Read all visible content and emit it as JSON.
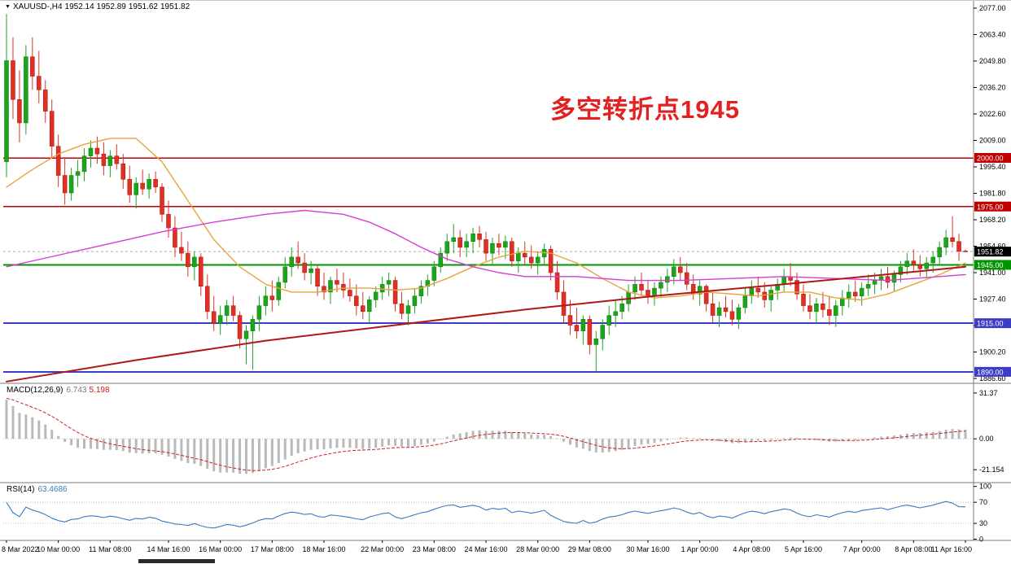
{
  "header": {
    "dropdown_icon": "▼",
    "symbol": "XAUUSD-,H4",
    "open": "1952.14",
    "high": "1952.89",
    "low": "1951.62",
    "close": "1951.82"
  },
  "annotation": {
    "text": "多空转折点1945",
    "color": "#e32020"
  },
  "indicators": {
    "macd": {
      "title": "MACD(12,26,9)",
      "value_main": "6.743",
      "value_signal": "5.198"
    },
    "rsi": {
      "title": "RSI(14)",
      "value": "63.4686"
    }
  },
  "chart_data": {
    "type": "candlestick",
    "symbol": "XAUUSD",
    "timeframe": "H4",
    "title": "XAUUSD-,H4",
    "y_axis": {
      "top": 2077.0,
      "bottom": 1886.6,
      "ticks": [
        "2077.00",
        "2063.40",
        "2049.80",
        "2036.20",
        "2022.60",
        "2009.00",
        "1995.40",
        "1981.80",
        "1968.20",
        "1954.60",
        "1941.00",
        "1927.40",
        "1913.80",
        "1900.20",
        "1886.60"
      ]
    },
    "x_labels": [
      "8 Mar 2022",
      "10 Mar 00:00",
      "11 Mar 08:00",
      "14 Mar 16:00",
      "16 Mar 00:00",
      "17 Mar 08:00",
      "18 Mar 16:00",
      "22 Mar 00:00",
      "23 Mar 08:00",
      "24 Mar 16:00",
      "28 Mar 00:00",
      "29 Mar 08:00",
      "30 Mar 16:00",
      "1 Apr 00:00",
      "4 Apr 08:00",
      "5 Apr 16:00",
      "7 Apr 00:00",
      "8 Apr 08:00",
      "11 Apr 16:00"
    ],
    "hlines": [
      {
        "price": 2000.0,
        "label": "2000.00",
        "color": "#c00000",
        "width": 1.5
      },
      {
        "price": 1975.0,
        "label": "1975.00",
        "color": "#c00000",
        "width": 1.5
      },
      {
        "price": 1945.0,
        "label": "1945.00",
        "color": "#009500",
        "width": 2
      },
      {
        "price": 1915.0,
        "label": "1915.00",
        "color": "#3c3cc8",
        "width": 2
      },
      {
        "price": 1890.0,
        "label": "1890.00",
        "color": "#3c3cc8",
        "width": 2
      }
    ],
    "bid": {
      "price": 1951.82,
      "label": "1951.82",
      "box_color": "#000000"
    },
    "ma_lines": [
      {
        "name": "ma-fast-orange",
        "color": "#e8a33d",
        "width": 1.4,
        "points": [
          [
            0,
            1985
          ],
          [
            4,
            1994
          ],
          [
            8,
            2002
          ],
          [
            12,
            2007
          ],
          [
            16,
            2010
          ],
          [
            20,
            2010
          ],
          [
            24,
            1998
          ],
          [
            28,
            1978
          ],
          [
            32,
            1958
          ],
          [
            36,
            1944
          ],
          [
            40,
            1935
          ],
          [
            44,
            1931
          ],
          [
            48,
            1931
          ],
          [
            52,
            1933
          ],
          [
            56,
            1933
          ],
          [
            60,
            1932
          ],
          [
            64,
            1933
          ],
          [
            68,
            1938
          ],
          [
            72,
            1944
          ],
          [
            76,
            1949
          ],
          [
            80,
            1952
          ],
          [
            84,
            1951
          ],
          [
            88,
            1946
          ],
          [
            92,
            1938
          ],
          [
            96,
            1931
          ],
          [
            100,
            1928
          ],
          [
            104,
            1929
          ],
          [
            108,
            1931
          ],
          [
            112,
            1930
          ],
          [
            116,
            1929
          ],
          [
            120,
            1931
          ],
          [
            124,
            1931
          ],
          [
            128,
            1928
          ],
          [
            132,
            1927
          ],
          [
            136,
            1930
          ],
          [
            140,
            1935
          ],
          [
            144,
            1940
          ],
          [
            148,
            1946
          ]
        ]
      },
      {
        "name": "ma-slow-magenta",
        "color": "#d63cd6",
        "width": 1.4,
        "points": [
          [
            0,
            1944
          ],
          [
            8,
            1950
          ],
          [
            16,
            1956
          ],
          [
            24,
            1962
          ],
          [
            32,
            1967
          ],
          [
            40,
            1971
          ],
          [
            46,
            1973
          ],
          [
            52,
            1971
          ],
          [
            56,
            1967
          ],
          [
            60,
            1961
          ],
          [
            64,
            1954
          ],
          [
            68,
            1948
          ],
          [
            72,
            1944
          ],
          [
            76,
            1941
          ],
          [
            80,
            1939
          ],
          [
            88,
            1939
          ],
          [
            96,
            1937
          ],
          [
            104,
            1937
          ],
          [
            112,
            1938
          ],
          [
            120,
            1939
          ],
          [
            128,
            1938
          ],
          [
            136,
            1937
          ],
          [
            144,
            1939
          ],
          [
            148,
            1940
          ]
        ]
      },
      {
        "name": "trend-darkred",
        "color": "#b01818",
        "width": 2,
        "points": [
          [
            0,
            1885
          ],
          [
            20,
            1896
          ],
          [
            40,
            1906
          ],
          [
            60,
            1914
          ],
          [
            80,
            1922
          ],
          [
            100,
            1929
          ],
          [
            120,
            1935
          ],
          [
            148,
            1944
          ]
        ]
      }
    ],
    "macd_axis": {
      "domain": [
        38,
        -30
      ],
      "ticks": [
        {
          "v": 31.37,
          "label": "31.37"
        },
        {
          "v": 0,
          "label": "0.00"
        },
        {
          "v": -21.154,
          "label": "-21.154"
        }
      ]
    },
    "rsi_axis": {
      "levels": [
        70,
        30
      ],
      "ticks": [
        {
          "v": 100,
          "label": "100"
        },
        {
          "v": 70,
          "label": "70"
        },
        {
          "v": 30,
          "label": "30"
        },
        {
          "v": 0,
          "label": "0"
        }
      ]
    },
    "colors": {
      "up": "#1CA51C",
      "up_edge": "#0B7A0B",
      "down": "#E03024",
      "down_edge": "#A31510",
      "bid_line": "#aaaaaa",
      "separator": "#7a7a7a",
      "axis_text": "#000000",
      "macd_hist": "#b9b9b9",
      "macd_signal": "#cc2222",
      "rsi_line": "#3b7bbf",
      "level_dots": "#bbbbbb"
    },
    "candles": [
      [
        1998,
        2074,
        1990,
        2050
      ],
      [
        2050,
        2062,
        2020,
        2030
      ],
      [
        2030,
        2045,
        2008,
        2018
      ],
      [
        2018,
        2058,
        2012,
        2052
      ],
      [
        2052,
        2062,
        2035,
        2042
      ],
      [
        2042,
        2055,
        2028,
        2035
      ],
      [
        2035,
        2040,
        2018,
        2024
      ],
      [
        2024,
        2030,
        2000,
        2006
      ],
      [
        2006,
        2012,
        1985,
        1991
      ],
      [
        1991,
        2000,
        1976,
        1982
      ],
      [
        1982,
        1995,
        1978,
        1991
      ],
      [
        1991,
        1999,
        1985,
        1993
      ],
      [
        1993,
        2005,
        1988,
        2001
      ],
      [
        2001,
        2009,
        1995,
        2005
      ],
      [
        2005,
        2011,
        1997,
        2002
      ],
      [
        2002,
        2008,
        1991,
        1996
      ],
      [
        1996,
        2004,
        1990,
        2001
      ],
      [
        2001,
        2007,
        1994,
        1997
      ],
      [
        1997,
        2002,
        1984,
        1989
      ],
      [
        1989,
        1996,
        1977,
        1981
      ],
      [
        1981,
        1990,
        1974,
        1987
      ],
      [
        1987,
        1994,
        1981,
        1984
      ],
      [
        1984,
        1992,
        1979,
        1989
      ],
      [
        1989,
        1993,
        1982,
        1985
      ],
      [
        1985,
        1987,
        1967,
        1971
      ],
      [
        1971,
        1978,
        1959,
        1964
      ],
      [
        1964,
        1970,
        1949,
        1954
      ],
      [
        1954,
        1962,
        1947,
        1951
      ],
      [
        1951,
        1957,
        1939,
        1944
      ],
      [
        1944,
        1952,
        1937,
        1949
      ],
      [
        1949,
        1951,
        1929,
        1934
      ],
      [
        1934,
        1940,
        1917,
        1921
      ],
      [
        1921,
        1929,
        1911,
        1915
      ],
      [
        1915,
        1924,
        1909,
        1919
      ],
      [
        1919,
        1927,
        1914,
        1924
      ],
      [
        1924,
        1929,
        1916,
        1919
      ],
      [
        1919,
        1921,
        1902,
        1907
      ],
      [
        1907,
        1914,
        1894,
        1911
      ],
      [
        1911,
        1919,
        1891,
        1917
      ],
      [
        1917,
        1929,
        1911,
        1924
      ],
      [
        1924,
        1934,
        1919,
        1929
      ],
      [
        1929,
        1937,
        1921,
        1927
      ],
      [
        1927,
        1939,
        1924,
        1936
      ],
      [
        1936,
        1949,
        1933,
        1944
      ],
      [
        1944,
        1954,
        1939,
        1949
      ],
      [
        1949,
        1957,
        1943,
        1946
      ],
      [
        1946,
        1951,
        1937,
        1941
      ],
      [
        1941,
        1947,
        1935,
        1943
      ],
      [
        1943,
        1945,
        1929,
        1934
      ],
      [
        1934,
        1941,
        1927,
        1931
      ],
      [
        1931,
        1939,
        1925,
        1937
      ],
      [
        1937,
        1943,
        1931,
        1935
      ],
      [
        1935,
        1941,
        1928,
        1932
      ],
      [
        1932,
        1938,
        1926,
        1929
      ],
      [
        1929,
        1935,
        1919,
        1924
      ],
      [
        1924,
        1931,
        1917,
        1921
      ],
      [
        1921,
        1929,
        1915,
        1927
      ],
      [
        1927,
        1934,
        1923,
        1931
      ],
      [
        1931,
        1939,
        1927,
        1935
      ],
      [
        1935,
        1941,
        1929,
        1937
      ],
      [
        1937,
        1939,
        1921,
        1925
      ],
      [
        1925,
        1931,
        1917,
        1920
      ],
      [
        1920,
        1927,
        1914,
        1924
      ],
      [
        1924,
        1933,
        1920,
        1929
      ],
      [
        1929,
        1937,
        1925,
        1934
      ],
      [
        1934,
        1940,
        1929,
        1937
      ],
      [
        1937,
        1947,
        1934,
        1944
      ],
      [
        1944,
        1954,
        1941,
        1951
      ],
      [
        1951,
        1961,
        1947,
        1957
      ],
      [
        1957,
        1966,
        1951,
        1959
      ],
      [
        1959,
        1963,
        1949,
        1954
      ],
      [
        1954,
        1961,
        1949,
        1957
      ],
      [
        1957,
        1964,
        1951,
        1961
      ],
      [
        1961,
        1965,
        1954,
        1958
      ],
      [
        1958,
        1962,
        1947,
        1951
      ],
      [
        1951,
        1959,
        1945,
        1956
      ],
      [
        1956,
        1961,
        1950,
        1954
      ],
      [
        1954,
        1960,
        1948,
        1957
      ],
      [
        1957,
        1959,
        1944,
        1947
      ],
      [
        1947,
        1954,
        1941,
        1951
      ],
      [
        1951,
        1957,
        1945,
        1949
      ],
      [
        1949,
        1955,
        1943,
        1946
      ],
      [
        1946,
        1952,
        1940,
        1949
      ],
      [
        1949,
        1956,
        1945,
        1953
      ],
      [
        1953,
        1955,
        1937,
        1941
      ],
      [
        1941,
        1947,
        1927,
        1931
      ],
      [
        1931,
        1937,
        1915,
        1919
      ],
      [
        1919,
        1927,
        1909,
        1914
      ],
      [
        1914,
        1923,
        1907,
        1911
      ],
      [
        1911,
        1919,
        1904,
        1917
      ],
      [
        1917,
        1919,
        1899,
        1904
      ],
      [
        1904,
        1911,
        1890,
        1907
      ],
      [
        1907,
        1917,
        1901,
        1914
      ],
      [
        1914,
        1924,
        1909,
        1919
      ],
      [
        1919,
        1927,
        1913,
        1921
      ],
      [
        1921,
        1929,
        1917,
        1925
      ],
      [
        1925,
        1935,
        1921,
        1931
      ],
      [
        1931,
        1939,
        1927,
        1935
      ],
      [
        1935,
        1941,
        1929,
        1932
      ],
      [
        1932,
        1937,
        1925,
        1929
      ],
      [
        1929,
        1936,
        1924,
        1933
      ],
      [
        1933,
        1939,
        1928,
        1936
      ],
      [
        1936,
        1943,
        1931,
        1939
      ],
      [
        1939,
        1948,
        1935,
        1944
      ],
      [
        1944,
        1949,
        1937,
        1941
      ],
      [
        1941,
        1946,
        1932,
        1935
      ],
      [
        1935,
        1940,
        1927,
        1930
      ],
      [
        1930,
        1937,
        1924,
        1934
      ],
      [
        1934,
        1935,
        1921,
        1925
      ],
      [
        1925,
        1931,
        1915,
        1919
      ],
      [
        1919,
        1926,
        1913,
        1923
      ],
      [
        1923,
        1929,
        1918,
        1921
      ],
      [
        1921,
        1927,
        1914,
        1917
      ],
      [
        1917,
        1925,
        1912,
        1923
      ],
      [
        1923,
        1933,
        1920,
        1929
      ],
      [
        1929,
        1937,
        1925,
        1933
      ],
      [
        1933,
        1939,
        1928,
        1931
      ],
      [
        1931,
        1936,
        1923,
        1927
      ],
      [
        1927,
        1934,
        1921,
        1932
      ],
      [
        1932,
        1938,
        1927,
        1935
      ],
      [
        1935,
        1943,
        1931,
        1939
      ],
      [
        1939,
        1946,
        1934,
        1937
      ],
      [
        1937,
        1941,
        1927,
        1930
      ],
      [
        1930,
        1935,
        1921,
        1924
      ],
      [
        1924,
        1930,
        1917,
        1921
      ],
      [
        1921,
        1928,
        1915,
        1925
      ],
      [
        1925,
        1931,
        1918,
        1922
      ],
      [
        1922,
        1929,
        1914,
        1919
      ],
      [
        1919,
        1927,
        1913,
        1924
      ],
      [
        1924,
        1932,
        1919,
        1928
      ],
      [
        1928,
        1935,
        1923,
        1931
      ],
      [
        1931,
        1937,
        1926,
        1929
      ],
      [
        1929,
        1936,
        1924,
        1933
      ],
      [
        1933,
        1940,
        1929,
        1935
      ],
      [
        1935,
        1941,
        1930,
        1937
      ],
      [
        1937,
        1943,
        1932,
        1939
      ],
      [
        1939,
        1944,
        1933,
        1936
      ],
      [
        1936,
        1942,
        1931,
        1940
      ],
      [
        1940,
        1947,
        1936,
        1944
      ],
      [
        1944,
        1951,
        1940,
        1947
      ],
      [
        1947,
        1953,
        1942,
        1945
      ],
      [
        1945,
        1950,
        1939,
        1943
      ],
      [
        1943,
        1949,
        1938,
        1946
      ],
      [
        1946,
        1952,
        1941,
        1949
      ],
      [
        1949,
        1957,
        1945,
        1954
      ],
      [
        1954,
        1963,
        1950,
        1959
      ],
      [
        1959,
        1970,
        1954,
        1957
      ],
      [
        1957,
        1961,
        1947,
        1952
      ],
      [
        1952.14,
        1952.89,
        1951.62,
        1951.82
      ]
    ]
  }
}
